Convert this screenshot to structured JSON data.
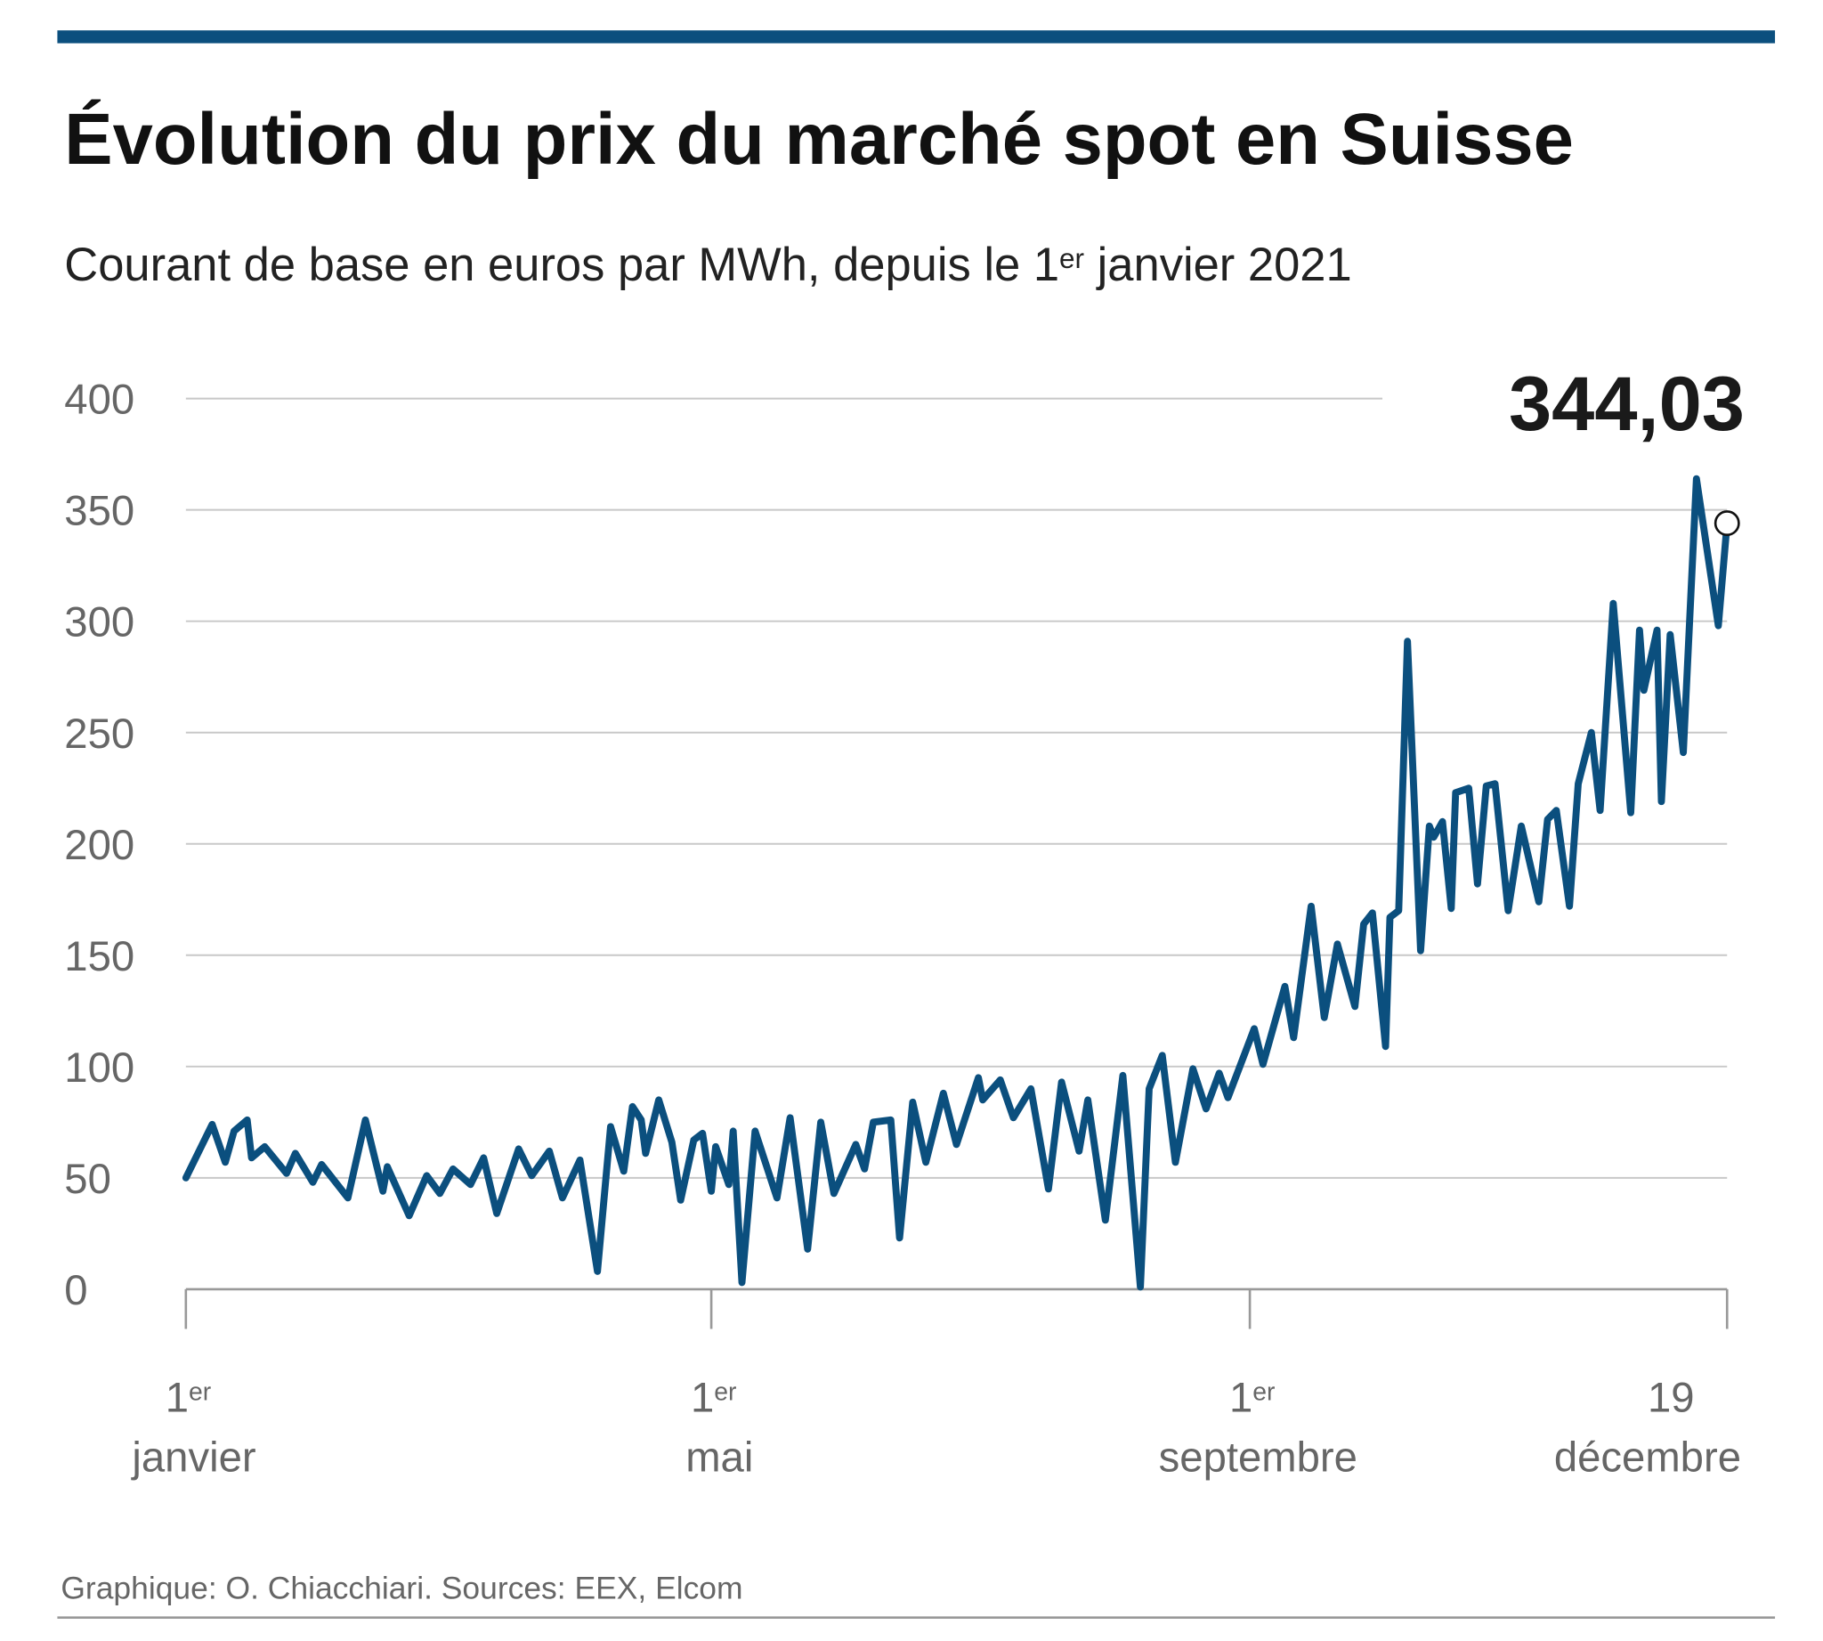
{
  "chart_data": {
    "type": "line",
    "title": "Évolution du prix du marché spot en Suisse",
    "subtitle": "Courant de base en euros par MWh, depuis le 1er janvier 2021",
    "source": "Graphique: O. Chiacchiari. Sources: EEX, Elcom",
    "x": [
      0,
      6,
      9,
      11,
      14,
      15,
      18,
      23,
      25,
      29,
      31,
      37,
      41,
      45,
      46,
      51,
      55,
      58,
      61,
      65,
      68,
      71,
      76,
      79,
      83,
      86,
      90,
      94,
      97,
      100,
      102,
      104,
      105,
      108,
      111,
      113,
      116,
      118,
      120,
      121,
      124,
      125,
      127,
      130,
      135,
      138,
      142,
      145,
      148,
      153,
      155,
      157,
      161,
      163,
      166,
      169,
      173,
      176,
      181,
      182,
      186,
      189,
      193,
      197,
      200,
      204,
      206,
      210,
      214,
      218,
      220,
      223,
      226,
      230,
      233,
      236,
      238,
      244,
      246,
      251,
      253,
      257,
      260,
      263,
      267,
      269,
      271,
      274,
      275,
      277,
      279,
      282,
      284,
      285,
      287,
      289,
      290,
      293,
      295,
      297,
      299,
      302,
      305,
      309,
      311,
      313,
      316,
      318,
      321,
      323,
      326,
      330,
      332,
      333,
      336,
      337,
      339,
      342,
      345,
      350,
      352
    ],
    "series": [
      {
        "name": "Courant de base",
        "color": "#0b4f7e",
        "values": [
          50,
          74,
          57,
          71,
          76,
          59,
          64,
          52,
          61,
          48,
          56,
          41,
          76,
          44,
          55,
          33,
          51,
          43,
          54,
          47,
          59,
          34,
          63,
          51,
          62,
          41,
          58,
          8,
          73,
          53,
          82,
          76,
          61,
          85,
          66,
          40,
          67,
          70,
          44,
          64,
          47,
          71,
          3,
          71,
          41,
          77,
          18,
          75,
          43,
          65,
          54,
          75,
          76,
          23,
          84,
          57,
          88,
          65,
          95,
          85,
          94,
          77,
          90,
          45,
          93,
          62,
          85,
          31,
          96,
          1,
          90,
          105,
          57,
          99,
          81,
          97,
          86,
          117,
          101,
          136,
          113,
          172,
          122,
          155,
          127,
          164,
          169,
          109,
          167,
          170,
          291,
          152,
          208,
          203,
          210,
          171,
          223,
          225,
          182,
          226,
          227,
          170,
          208,
          174,
          211,
          215,
          172,
          227,
          250,
          215,
          308,
          214,
          296,
          269,
          296,
          219,
          294,
          241,
          364,
          298,
          344.03
        ],
        "value_labels": [
          null,
          null,
          null,
          null,
          null,
          null,
          null,
          null,
          null,
          null,
          null,
          null,
          null,
          null,
          null,
          null,
          null,
          null,
          null,
          null,
          null,
          null,
          null,
          null,
          null,
          null,
          null,
          null,
          null,
          null,
          null,
          null,
          null,
          null,
          null,
          null,
          null,
          null,
          null,
          null,
          null,
          null,
          null,
          null,
          null,
          null,
          null,
          null,
          null,
          null,
          null,
          null,
          null,
          null,
          null,
          null,
          null,
          null,
          null,
          null,
          null,
          null,
          null,
          null,
          null,
          null,
          null,
          null,
          null,
          null,
          null,
          null,
          null,
          null,
          null,
          null,
          null,
          null,
          null,
          null,
          null,
          null,
          null,
          null,
          null,
          null,
          null,
          null,
          null,
          null,
          null,
          null,
          null,
          null,
          null,
          null,
          null,
          null,
          null,
          null,
          null,
          null,
          null,
          null,
          null,
          null,
          null,
          null,
          null,
          null,
          null,
          null,
          null,
          null,
          null,
          null,
          null,
          null,
          null,
          null,
          "344,03"
        ]
      }
    ],
    "xlim": [
      0,
      352
    ],
    "xticks": [
      {
        "value": 0,
        "label": "1er janvier"
      },
      {
        "value": 120,
        "label": "1er mai"
      },
      {
        "value": 243,
        "label": "1er septembre"
      },
      {
        "value": 352,
        "label": "19 décembre"
      }
    ],
    "ylim": [
      0,
      400
    ],
    "yticks": [
      0,
      50,
      100,
      150,
      200,
      250,
      300,
      350,
      400
    ],
    "grid": true
  }
}
